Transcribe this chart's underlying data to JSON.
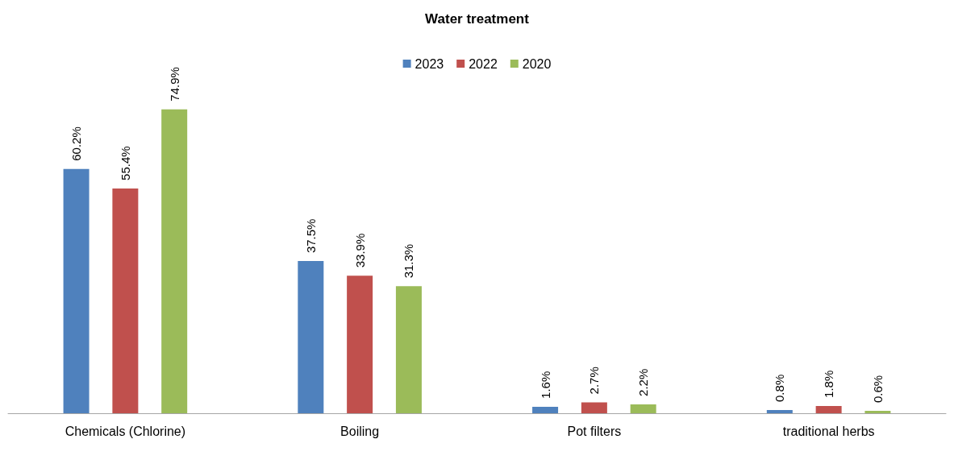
{
  "chart_data": {
    "type": "bar",
    "title": "Water treatment",
    "categories": [
      "Chemicals (Chlorine)",
      "Boiling",
      "Pot filters",
      "traditional herbs"
    ],
    "series": [
      {
        "name": "2023",
        "color": "#4f81bd",
        "values": [
          60.2,
          37.5,
          1.6,
          0.8
        ],
        "value_labels": [
          "60.2%",
          "37.5%",
          "1.6%",
          "0.8%"
        ]
      },
      {
        "name": "2022",
        "color": "#c0504d",
        "values": [
          55.4,
          33.9,
          2.7,
          1.8
        ],
        "value_labels": [
          "55.4%",
          "33.9%",
          "2.7%",
          "1.8%"
        ]
      },
      {
        "name": "2020",
        "color": "#9bbb59",
        "values": [
          74.9,
          31.3,
          2.2,
          0.6
        ],
        "value_labels": [
          "74.9%",
          "31.3%",
          "2.2%",
          "0.6%"
        ]
      }
    ],
    "legend": "top"
  }
}
